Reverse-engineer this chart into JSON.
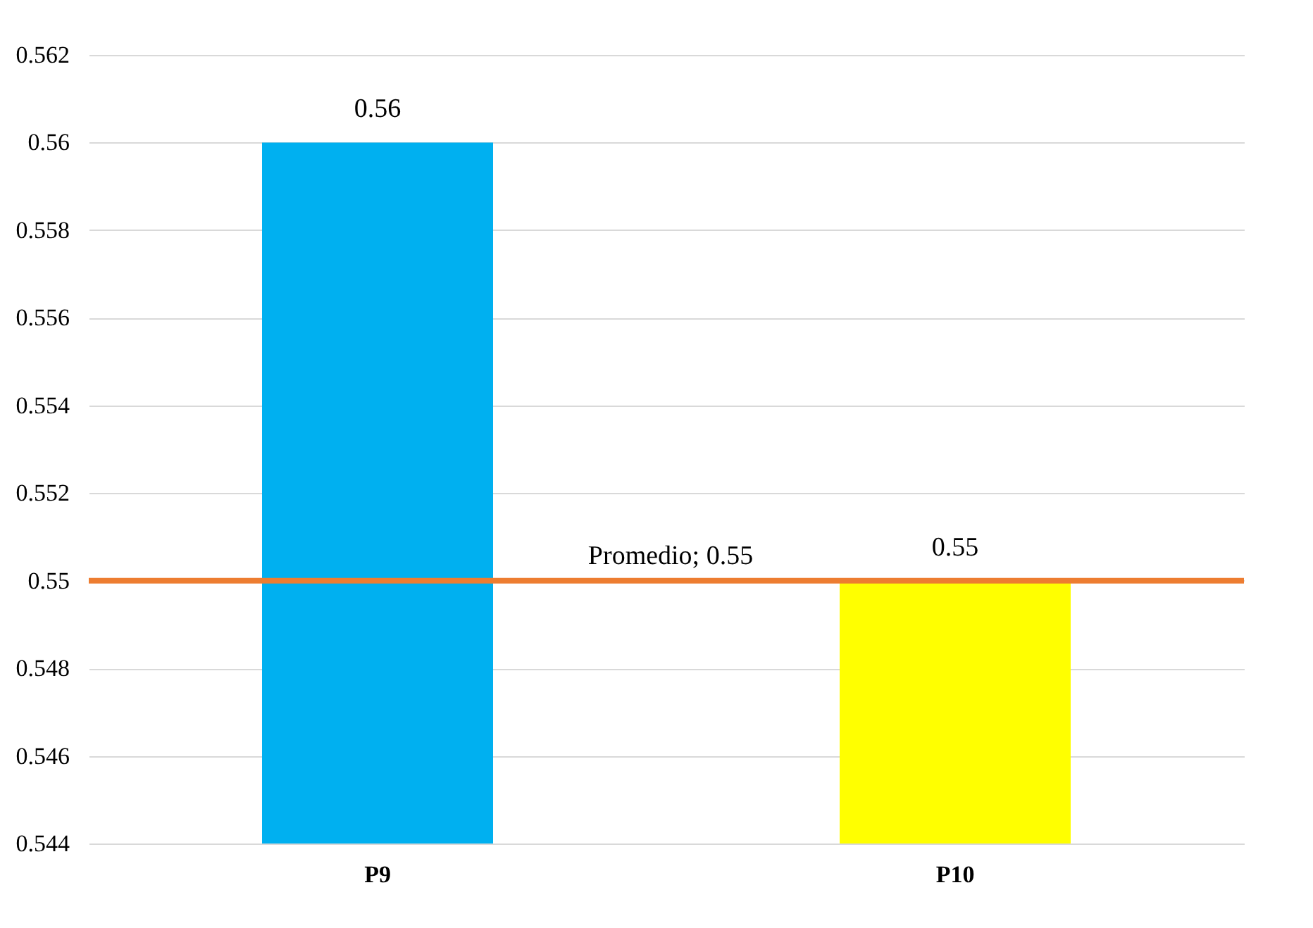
{
  "chart_data": {
    "type": "bar",
    "categories": [
      "P9",
      "P10"
    ],
    "values": [
      0.56,
      0.55
    ],
    "colors": [
      "#00b0f0",
      "#ffff00"
    ],
    "ylim": [
      0.544,
      0.562
    ],
    "yticks": [
      0.544,
      0.546,
      0.548,
      0.55,
      0.552,
      0.554,
      0.556,
      0.558,
      0.56,
      0.562
    ],
    "grid": "y",
    "data_labels": true,
    "ref_lines": [
      {
        "axis": "y",
        "value": 0.55,
        "label": "Promedio; 0.55",
        "color": "#ed7d31"
      }
    ]
  }
}
